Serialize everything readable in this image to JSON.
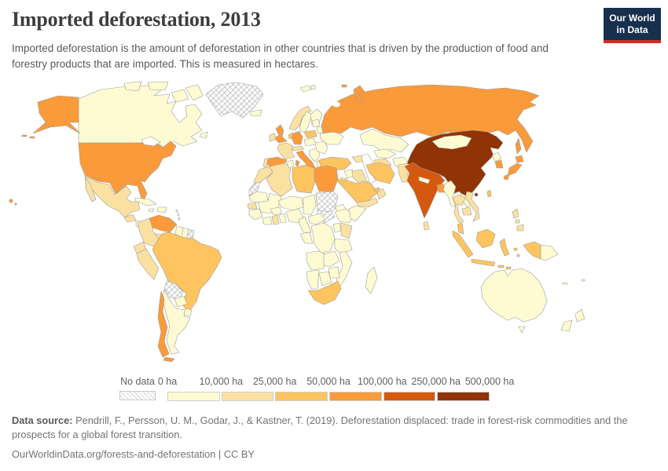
{
  "header": {
    "title": "Imported deforestation, 2013",
    "subtitle": "Imported deforestation is the amount of deforestation in other countries that is driven by the production of food and forestry products that are imported. This is measured in hectares.",
    "logo_line1": "Our World",
    "logo_line2": "in Data",
    "logo_colors": {
      "navy": "#16304e",
      "red": "#d42b20"
    }
  },
  "legend": {
    "no_data_label": "No data",
    "ticks": [
      "0 ha",
      "10,000 ha",
      "25,000 ha",
      "50,000 ha",
      "100,000 ha",
      "250,000 ha",
      "500,000 ha"
    ]
  },
  "footer": {
    "source_label": "Data source:",
    "source_text": " Pendrill, F., Persson, U. M., Godar, J., & Kastner, T. (2019). Deforestation displaced: trade in forest-risk commodities and the prospects for a global forest transition.",
    "citation": "OurWorldinData.org/forests-and-deforestation | CC BY"
  },
  "chart_data": {
    "type": "choropleth",
    "title": "Imported deforestation, 2013",
    "unit": "hectares",
    "bin_edges_ha": [
      0,
      10000,
      25000,
      50000,
      100000,
      250000,
      500000
    ],
    "bin_labels": [
      "0–10,000 ha",
      "10,000–25,000 ha",
      "25,000–50,000 ha",
      "50,000–100,000 ha",
      "100,000–250,000 ha",
      "250,000–500,000 ha"
    ],
    "bin_colors": [
      "#fefbd2",
      "#fbe1a1",
      "#fdc45f",
      "#fa9a3a",
      "#d4590f",
      "#903305"
    ],
    "border_color": "#9d9d9d",
    "ocean_color": "#ffffff",
    "no_data": [
      "greenland",
      "bolivia",
      "western-sahara",
      "sudan",
      "south-sudan",
      "french-guiana",
      "lesser-antilles"
    ],
    "countries": {
      "canada": 0,
      "iceland": 0,
      "svalbard": 0,
      "sweden": 0,
      "finland": 0,
      "denmark": 0,
      "baltics": 0,
      "belarus": 0,
      "ukraine": 0,
      "czech-hungary": 0,
      "balkans": 0,
      "greece": 0,
      "romania-bulgaria": 0,
      "kazakhstan": 0,
      "uzbekistan": 0,
      "afghanistan": 0,
      "mongolia": 0,
      "north-korea": 0,
      "myanmar": 0,
      "laos": 0,
      "nepal": 0,
      "argentina": 0,
      "paraguay": 0,
      "uruguay": 0,
      "guyana": 0,
      "suriname": 0,
      "honduras-nicaragua": 0,
      "cuba": 0,
      "hispaniola": 0,
      "jamaica": 0,
      "tunisia": 0,
      "mauritania": 0,
      "mali": 0,
      "niger": 0,
      "chad": 0,
      "nigeria": 0,
      "guinea": 0,
      "ivory-coast": 0,
      "togo-benin": 0,
      "burkina": 0,
      "cameroon": 0,
      "central-african-republic": 0,
      "gabon-congo": 0,
      "drc": 0,
      "uganda": 0,
      "tanzania": 0,
      "angola": 0,
      "zambia": 0,
      "zimbabwe": 0,
      "malawi-mozambique": 0,
      "namibia": 0,
      "botswana": 0,
      "madagascar": 0,
      "ethiopia": 0,
      "eritrea": 0,
      "somalia": 0,
      "syria": 0,
      "australia": 0,
      "new-zealand": 0,
      "papua-new-guinea": 0,
      "new-caledonia": 0,
      "fiji": 0,
      "mexico": 1,
      "guatemala": 1,
      "costa-rica-panama": 1,
      "colombia": 1,
      "peru": 1,
      "ecuador": 1,
      "france": 1,
      "norway": 1,
      "ireland": 1,
      "portugal": 1,
      "switzerland-austria": 1,
      "morocco": 1,
      "algeria": 1,
      "senegal": 1,
      "ghana": 1,
      "kenya": 1,
      "iraq": 1,
      "yemen": 1,
      "oman": 1,
      "jordan-israel": 1,
      "turkmenistan": 1,
      "pakistan": 1,
      "thailand": 1,
      "vietnam": 1,
      "cambodia": 1,
      "sri-lanka": 1,
      "philippines": 1,
      "caucasus": 1,
      "brazil": 2,
      "indonesia": 2,
      "malaysia": 2,
      "south-africa": 2,
      "turkey": 2,
      "iran": 2,
      "saudi-arabia": 2,
      "libya": 2,
      "poland": 2,
      "low-countries": 2,
      "taiwan": 2,
      "uae": 2,
      "united-states": 3,
      "russia": 3,
      "japan": 3,
      "south-korea": 3,
      "united-kingdom": 3,
      "germany": 3,
      "italy": 3,
      "spain": 3,
      "egypt": 3,
      "venezuela": 3,
      "chile": 3,
      "bangladesh": 3,
      "india": 4,
      "china": 5,
      "hong-kong": 5
    }
  }
}
